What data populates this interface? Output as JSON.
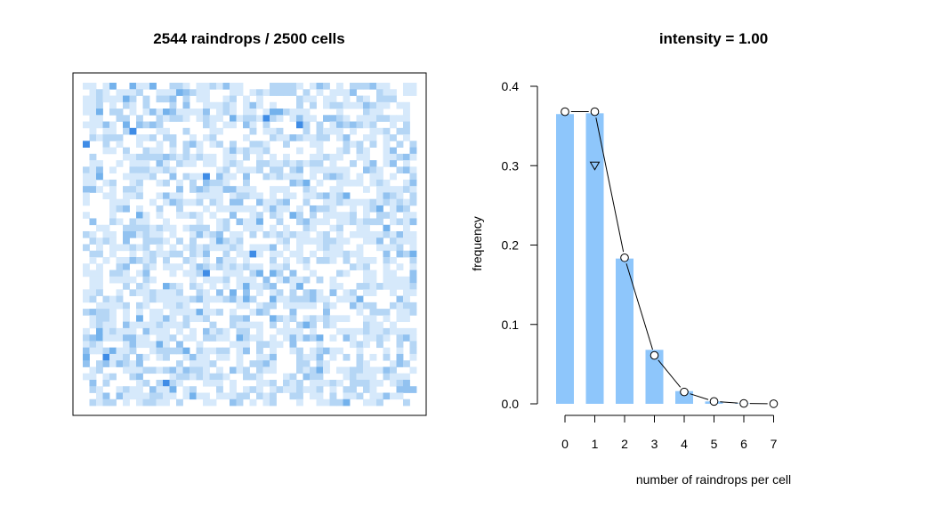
{
  "chart_data": [
    {
      "type": "heatmap",
      "title": "2544 raindrops / 2500 cells",
      "grid_rows": 50,
      "grid_cols": 50,
      "total_raindrops": 2544,
      "total_cells": 2500,
      "colors": {
        "count_0": "#ffffff",
        "count_1": "#d6e9fb",
        "count_2": "#b5d6f5",
        "count_3": "#92c2f0",
        "count_4": "#74b2ec",
        "count_5plus": "#3f8ce6"
      },
      "frame_color": "#000000"
    },
    {
      "type": "bar",
      "title": "intensity = 1.00",
      "xlabel": "number of raindrops per cell",
      "ylabel": "frequency",
      "categories": [
        "0",
        "1",
        "2",
        "3",
        "4",
        "5",
        "6",
        "7"
      ],
      "series": [
        {
          "values": [
            0.365,
            0.366,
            0.183,
            0.068,
            0.016,
            0.003,
            0.0005,
            0.0
          ]
        },
        {
          "values": [
            0.368,
            0.368,
            0.184,
            0.061,
            0.015,
            0.003,
            0.0005,
            0.0001
          ]
        },
        {
          "values": [
            null,
            0.3,
            null,
            null,
            null,
            null,
            null,
            null
          ]
        }
      ],
      "ylim": [
        0,
        0.4
      ],
      "yticks": [
        "0.0",
        "0.1",
        "0.2",
        "0.3",
        "0.4"
      ],
      "xticks": [
        "0",
        "1",
        "2",
        "3",
        "4",
        "5",
        "6",
        "7"
      ],
      "bar_color": "#8ec6fb",
      "line_color": "#000000",
      "grid": false
    }
  ]
}
